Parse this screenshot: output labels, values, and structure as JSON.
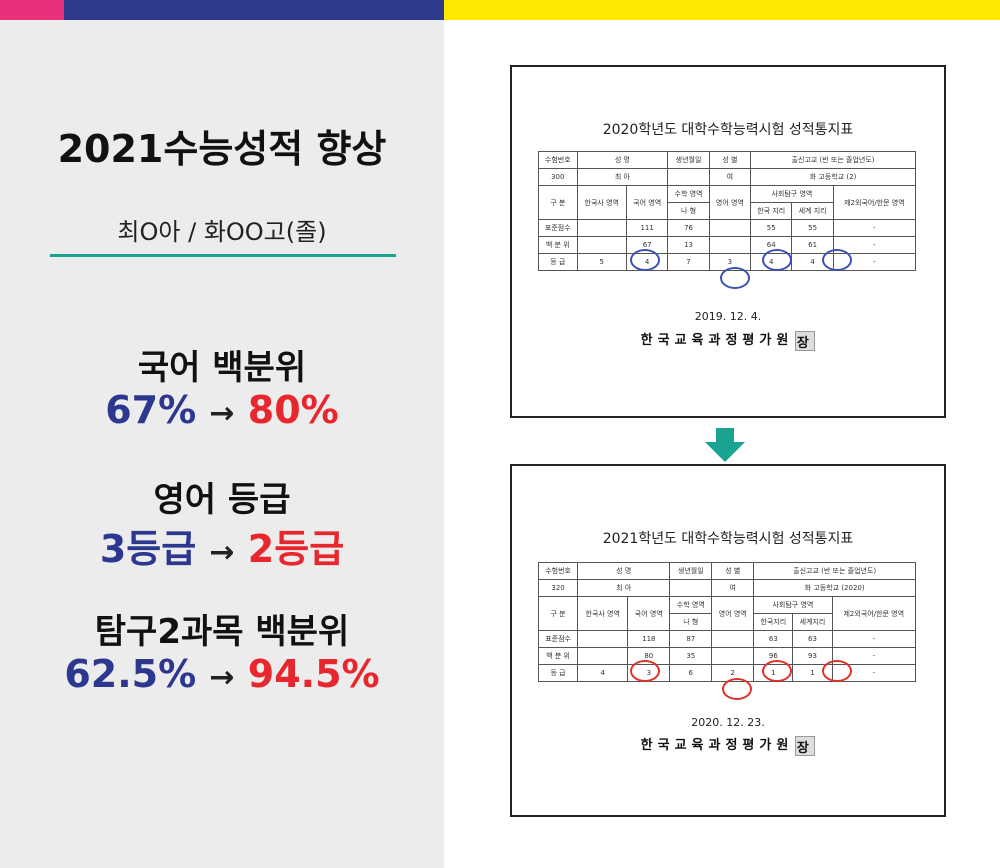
{
  "header": {
    "title": "2021수능성적 향상",
    "student": "최O아 / 화OO고(졸)"
  },
  "stats": [
    {
      "label": "국어 백분위",
      "from": "67%",
      "to": "80%"
    },
    {
      "label": "영어 등급",
      "from": "3등급",
      "to": "2등급"
    },
    {
      "label": "탐구2과목 백분위",
      "from": "62.5%",
      "to": "94.5%"
    }
  ],
  "arrow_symbol": "→",
  "colors": {
    "pink": "#e8317a",
    "navy": "#2e3a8c",
    "yellow": "#ffe800",
    "teal": "#1aa390",
    "before": "#2c3790",
    "after": "#e8262d"
  },
  "doc1": {
    "title": "2020학년도 대학수학능력시험 성적통지표",
    "date": "2019. 12. 4.",
    "issuer": "한국교육과정평가원",
    "seal": "장",
    "headers": [
      "수험번호",
      "성 명",
      "생년월일",
      "성 별",
      "출신고교 (반 또는 졸업년도)"
    ],
    "info": [
      "300",
      "최 아",
      "",
      "여",
      "화 고등학교 (2)"
    ],
    "subjects": [
      "구 분",
      "한국사 영역",
      "국어 영역",
      "수학 영역",
      "영어 영역",
      "사회탐구 영역",
      "제2외국어/한문 영역"
    ],
    "sub2": [
      "나 형",
      "한국 지리",
      "세계 지리"
    ],
    "rows": [
      [
        "표준점수",
        "",
        "111",
        "76",
        "",
        "55",
        "55",
        "-"
      ],
      [
        "백 분 위",
        "",
        "67",
        "13",
        "",
        "64",
        "61",
        "-"
      ],
      [
        "등 급",
        "5",
        "4",
        "7",
        "3",
        "4",
        "4",
        "-"
      ]
    ]
  },
  "doc2": {
    "title": "2021학년도 대학수학능력시험 성적통지표",
    "date": "2020. 12. 23.",
    "issuer": "한국교육과정평가원",
    "seal": "장",
    "headers": [
      "수험번호",
      "성 명",
      "생년월일",
      "성 별",
      "출신고교 (반 또는 졸업년도)"
    ],
    "info": [
      "320",
      "최 아",
      "",
      "여",
      "화 고등학교 (2020)"
    ],
    "subjects": [
      "구 분",
      "한국사 영역",
      "국어 영역",
      "수학 영역",
      "영어 영역",
      "사회탐구 영역",
      "제2외국어/한문 영역"
    ],
    "sub2": [
      "나 형",
      "한국지리",
      "세계지리"
    ],
    "rows": [
      [
        "표준점수",
        "",
        "118",
        "87",
        "",
        "63",
        "63",
        "-"
      ],
      [
        "백 분 위",
        "",
        "80",
        "35",
        "",
        "96",
        "93",
        "-"
      ],
      [
        "등 급",
        "4",
        "3",
        "6",
        "2",
        "1",
        "1",
        "-"
      ]
    ]
  }
}
